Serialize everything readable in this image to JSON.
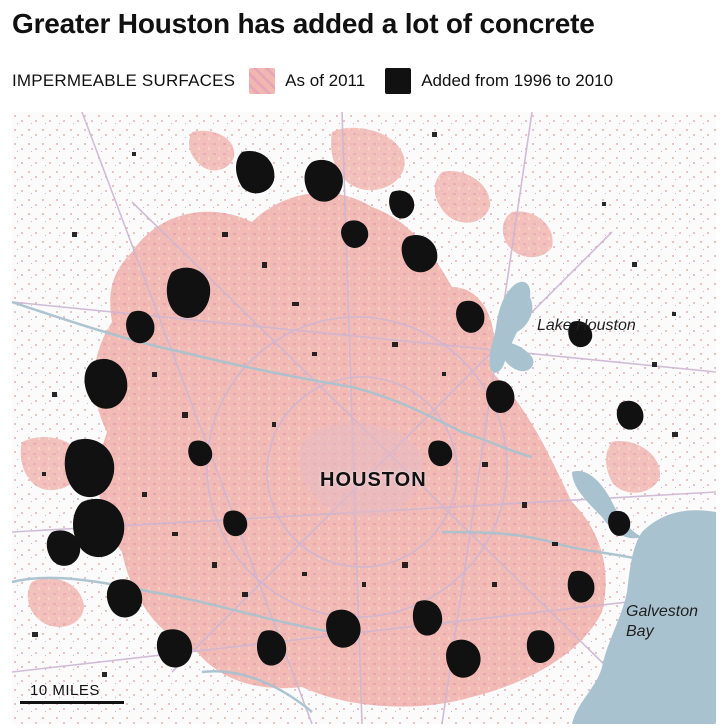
{
  "header": {
    "title": "Greater Houston has added a lot of concrete"
  },
  "legend": {
    "heading": "IMPERMEABLE SURFACES",
    "items": [
      {
        "label": "As of 2011",
        "color": "#f0b5b0",
        "icon": "pink-swatch-icon"
      },
      {
        "label": "Added from 1996 to 2010",
        "color": "#111111",
        "icon": "black-swatch-icon"
      }
    ]
  },
  "map": {
    "water_color": "#a9c2cf",
    "roads_color": "#d8c5d8",
    "labels": {
      "lake": "Lake Houston",
      "city": "HOUSTON",
      "bay_line1": "Galveston",
      "bay_line2": "Bay"
    },
    "scale_label": "10 MILES"
  }
}
